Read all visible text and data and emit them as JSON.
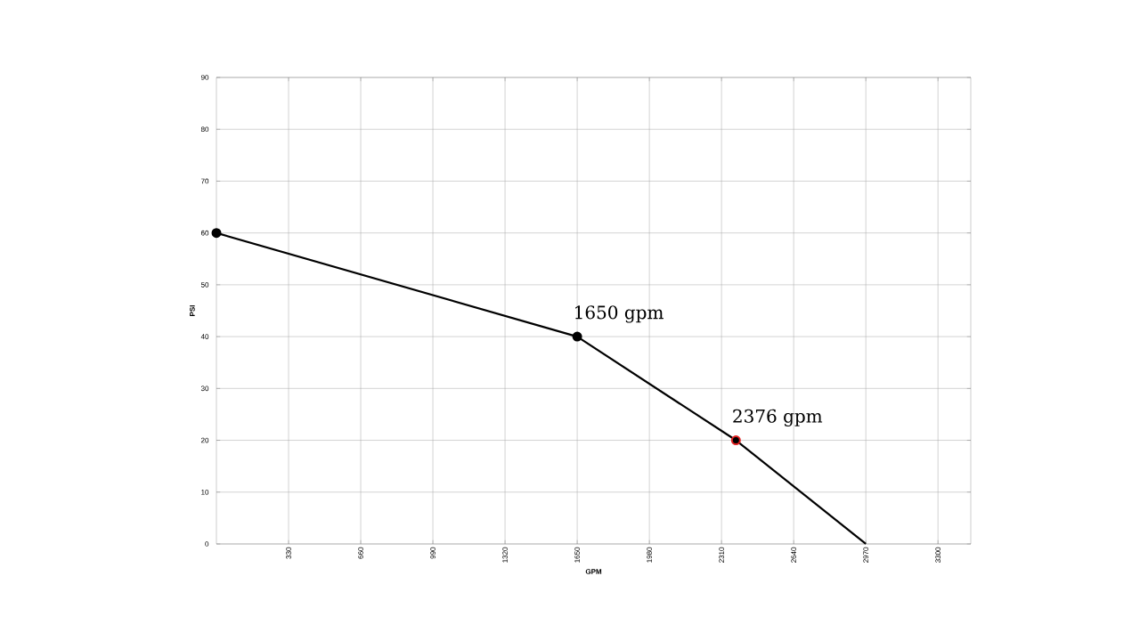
{
  "chart_data": {
    "type": "line",
    "xlabel": "GPM",
    "ylabel": "PSI",
    "xlim": [
      0,
      3450
    ],
    "xticks": [
      330,
      660,
      990,
      1320,
      1650,
      1980,
      2310,
      2640,
      2970,
      3300
    ],
    "ylim": [
      0,
      90
    ],
    "yticks": [
      0,
      10,
      20,
      30,
      40,
      50,
      60,
      70,
      80,
      90
    ],
    "grid": true,
    "series": [
      {
        "color": "#000000",
        "x": [
          0,
          1650,
          2376,
          2970
        ],
        "values": [
          60,
          40,
          20,
          0
        ],
        "marker": "none"
      },
      {
        "type": "scatter",
        "x": [
          0,
          1650,
          2376
        ],
        "values": [
          60,
          40,
          20
        ],
        "colors": [
          "#000000",
          "#000000",
          "#e02020"
        ],
        "marker": "circle"
      }
    ],
    "annotations": [
      {
        "text": "1650 gpm",
        "x": 1650,
        "y": 40
      },
      {
        "text": "2376 gpm",
        "x": 2376,
        "y": 20
      }
    ]
  }
}
